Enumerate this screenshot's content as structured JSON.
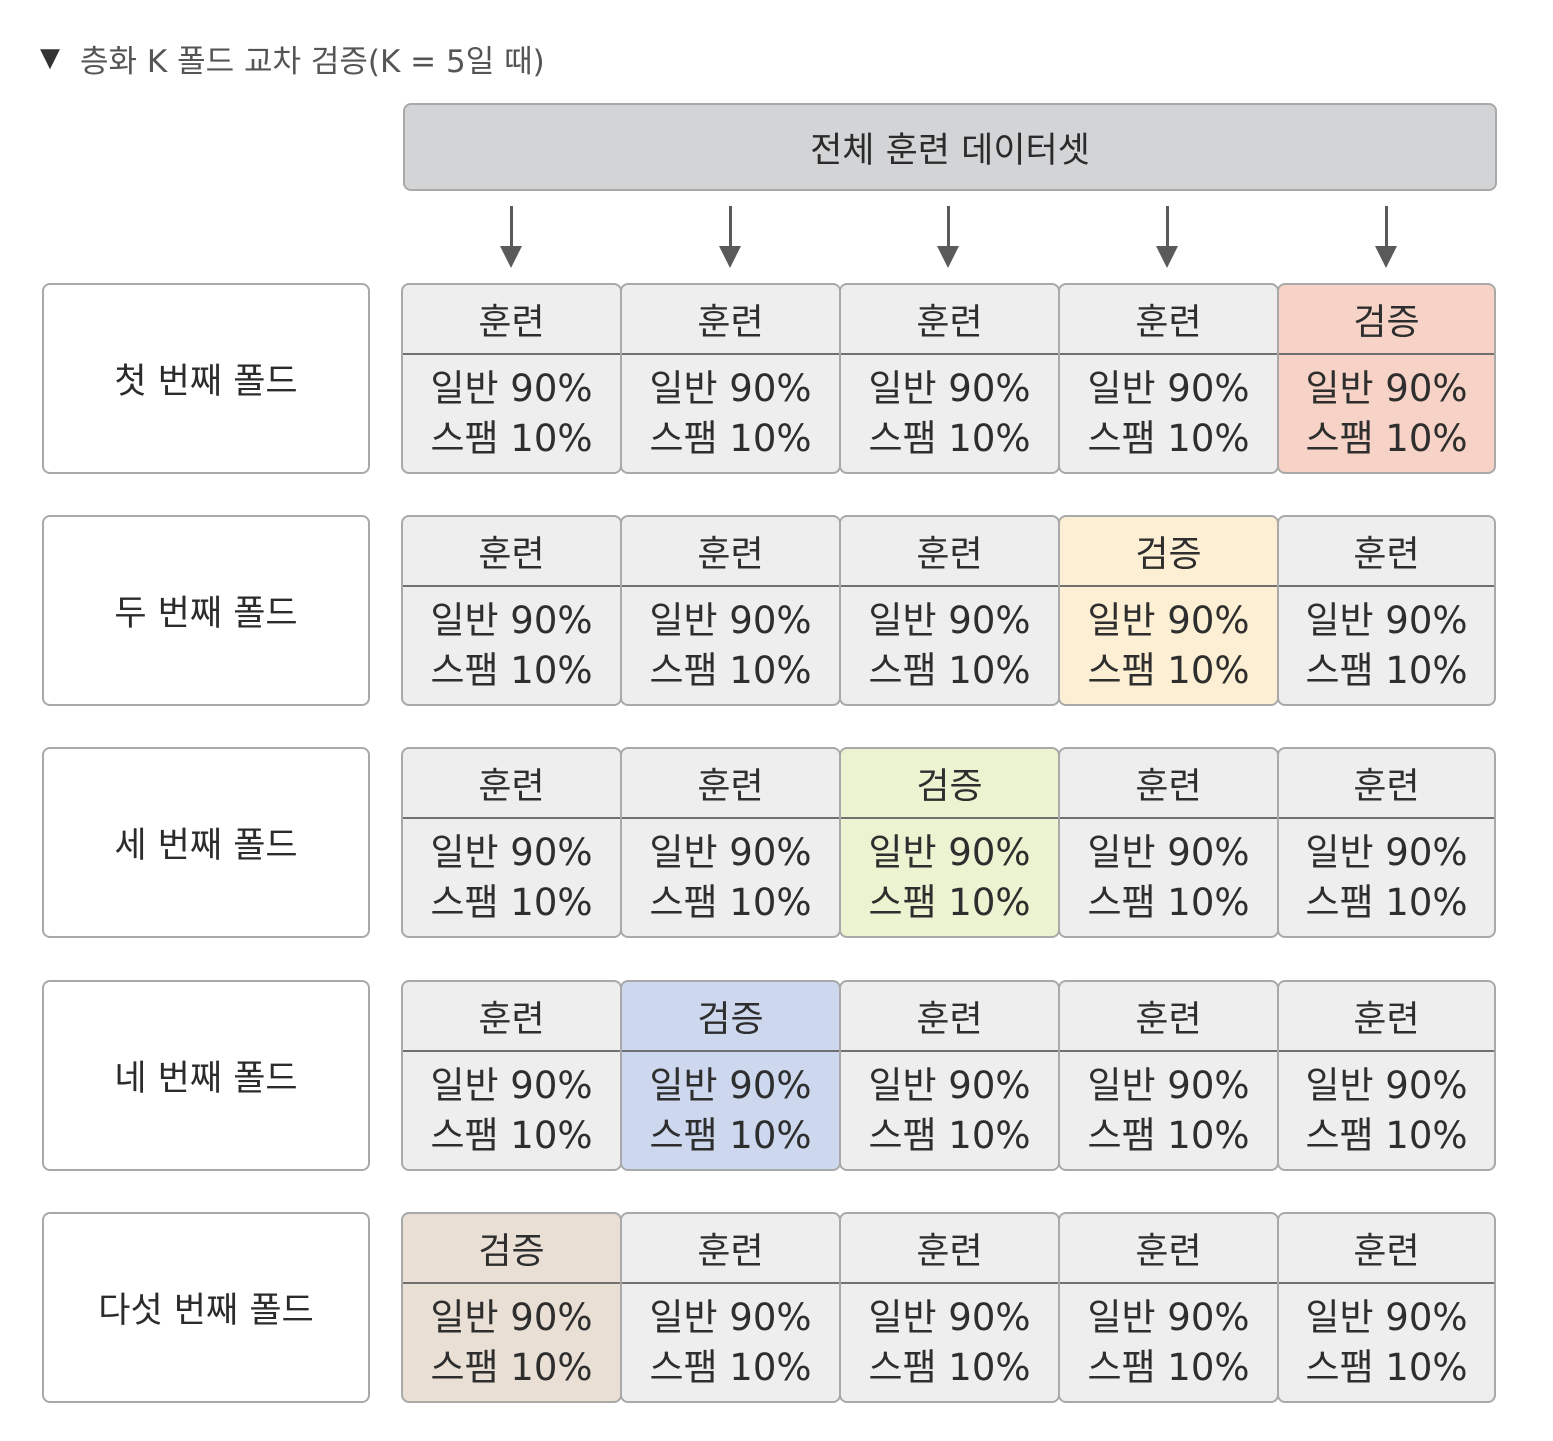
{
  "caption": {
    "icon": "triangle-down-icon",
    "text": "층화 K 폴드 교차 검증(K = 5일 때)"
  },
  "dataset_label": "전체 훈련 데이터셋",
  "colors": {
    "train": "#eeeeee",
    "validation_by_fold": [
      "#f6d3c6",
      "#fdefd3",
      "#ecf3d1",
      "#cdd7ee",
      "#e9dfd4"
    ]
  },
  "folds": [
    {
      "label": "첫 번째 폴드",
      "cells": [
        {
          "role": "train",
          "title": "훈련",
          "line1": "일반 90%",
          "line2": "스팸 10%"
        },
        {
          "role": "train",
          "title": "훈련",
          "line1": "일반 90%",
          "line2": "스팸 10%"
        },
        {
          "role": "train",
          "title": "훈련",
          "line1": "일반 90%",
          "line2": "스팸 10%"
        },
        {
          "role": "train",
          "title": "훈련",
          "line1": "일반 90%",
          "line2": "스팸 10%"
        },
        {
          "role": "validation",
          "title": "검증",
          "line1": "일반 90%",
          "line2": "스팸 10%"
        }
      ]
    },
    {
      "label": "두 번째 폴드",
      "cells": [
        {
          "role": "train",
          "title": "훈련",
          "line1": "일반 90%",
          "line2": "스팸 10%"
        },
        {
          "role": "train",
          "title": "훈련",
          "line1": "일반 90%",
          "line2": "스팸 10%"
        },
        {
          "role": "train",
          "title": "훈련",
          "line1": "일반 90%",
          "line2": "스팸 10%"
        },
        {
          "role": "validation",
          "title": "검증",
          "line1": "일반 90%",
          "line2": "스팸 10%"
        },
        {
          "role": "train",
          "title": "훈련",
          "line1": "일반 90%",
          "line2": "스팸 10%"
        }
      ]
    },
    {
      "label": "세 번째 폴드",
      "cells": [
        {
          "role": "train",
          "title": "훈련",
          "line1": "일반 90%",
          "line2": "스팸 10%"
        },
        {
          "role": "train",
          "title": "훈련",
          "line1": "일반 90%",
          "line2": "스팸 10%"
        },
        {
          "role": "validation",
          "title": "검증",
          "line1": "일반 90%",
          "line2": "스팸 10%"
        },
        {
          "role": "train",
          "title": "훈련",
          "line1": "일반 90%",
          "line2": "스팸 10%"
        },
        {
          "role": "train",
          "title": "훈련",
          "line1": "일반 90%",
          "line2": "스팸 10%"
        }
      ]
    },
    {
      "label": "네 번째 폴드",
      "cells": [
        {
          "role": "train",
          "title": "훈련",
          "line1": "일반 90%",
          "line2": "스팸 10%"
        },
        {
          "role": "validation",
          "title": "검증",
          "line1": "일반 90%",
          "line2": "스팸 10%"
        },
        {
          "role": "train",
          "title": "훈련",
          "line1": "일반 90%",
          "line2": "스팸 10%"
        },
        {
          "role": "train",
          "title": "훈련",
          "line1": "일반 90%",
          "line2": "스팸 10%"
        },
        {
          "role": "train",
          "title": "훈련",
          "line1": "일반 90%",
          "line2": "스팸 10%"
        }
      ]
    },
    {
      "label": "다섯 번째 폴드",
      "cells": [
        {
          "role": "validation",
          "title": "검증",
          "line1": "일반 90%",
          "line2": "스팸 10%"
        },
        {
          "role": "train",
          "title": "훈련",
          "line1": "일반 90%",
          "line2": "스팸 10%"
        },
        {
          "role": "train",
          "title": "훈련",
          "line1": "일반 90%",
          "line2": "스팸 10%"
        },
        {
          "role": "train",
          "title": "훈련",
          "line1": "일반 90%",
          "line2": "스팸 10%"
        },
        {
          "role": "train",
          "title": "훈련",
          "line1": "일반 90%",
          "line2": "스팸 10%"
        }
      ]
    }
  ]
}
